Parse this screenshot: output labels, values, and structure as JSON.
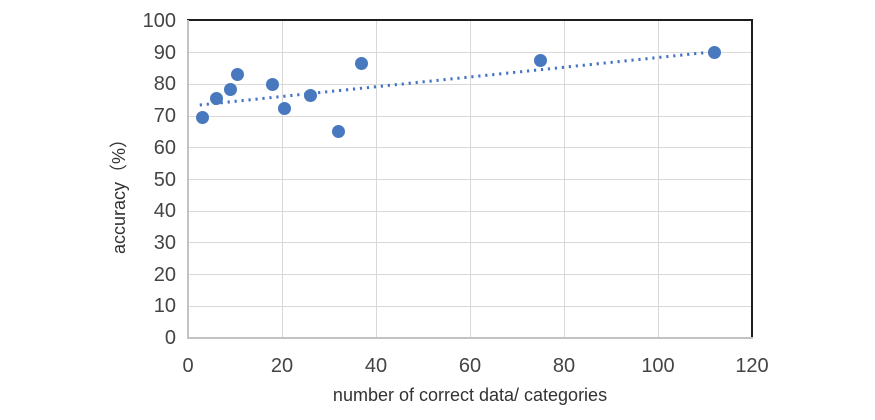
{
  "chart_data": {
    "type": "scatter",
    "title": "",
    "xlabel": "number of correct data/ categories",
    "ylabel": "accuracy（%）",
    "xlim": [
      0,
      120
    ],
    "ylim": [
      0,
      100
    ],
    "x_ticks": [
      0,
      20,
      40,
      60,
      80,
      100,
      120
    ],
    "y_ticks": [
      0,
      10,
      20,
      30,
      40,
      50,
      60,
      70,
      80,
      90,
      100
    ],
    "grid": true,
    "legend_position": "none",
    "points": [
      {
        "x": 3,
        "y": 69.5
      },
      {
        "x": 6,
        "y": 75.5
      },
      {
        "x": 9,
        "y": 78.5
      },
      {
        "x": 10.5,
        "y": 83
      },
      {
        "x": 18,
        "y": 80
      },
      {
        "x": 20.5,
        "y": 72.5
      },
      {
        "x": 26,
        "y": 76.5
      },
      {
        "x": 32,
        "y": 65
      },
      {
        "x": 37,
        "y": 86.5
      },
      {
        "x": 75,
        "y": 87.5
      },
      {
        "x": 112,
        "y": 90
      }
    ],
    "trendline": {
      "style": "dotted",
      "x_start": 2.5,
      "y_start": 73.5,
      "x_end": 112.5,
      "y_end": 90.4
    },
    "colors": {
      "marker": "#4878BE",
      "trendline": "#4472C4",
      "gridline": "#d9d9d9",
      "axis_line": "#c3c3c3",
      "border": "#1e1e1e",
      "tick_label": "#444444",
      "axis_title": "#333333"
    }
  }
}
